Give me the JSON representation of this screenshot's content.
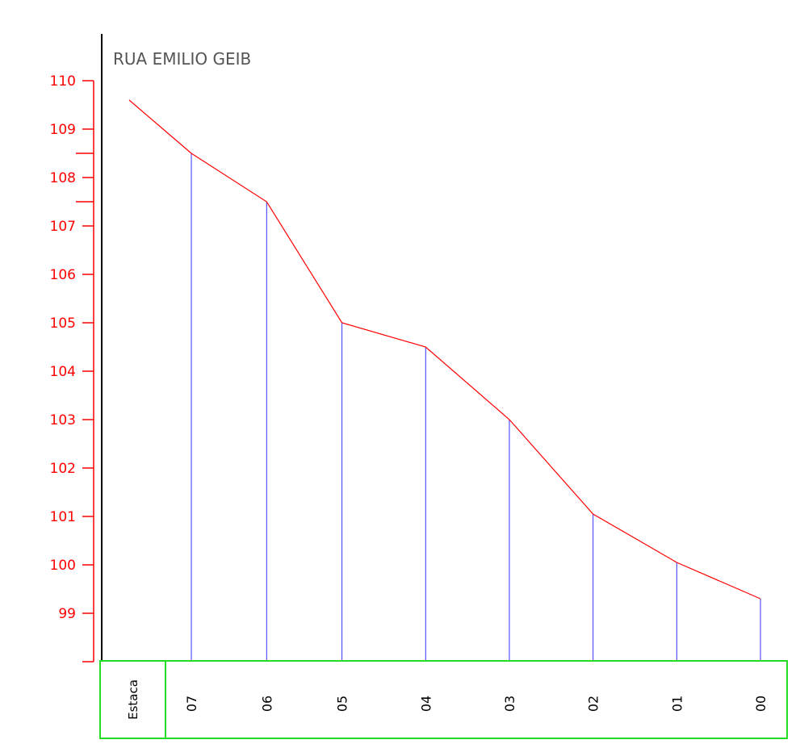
{
  "chart_data": {
    "type": "line",
    "title": "RUA EMILIO GEIB",
    "table_header": "Estaca",
    "y_ticks": [
      "99",
      "100",
      "101",
      "102",
      "103",
      "104",
      "105",
      "106",
      "107",
      "108",
      "109",
      "110"
    ],
    "ylim": [
      98,
      110
    ],
    "stations": [
      "07",
      "06",
      "05",
      "04",
      "03",
      "02",
      "01",
      "00"
    ],
    "station_x": [
      1,
      2.8,
      4.6,
      6.6,
      8.6,
      10.6,
      12.6,
      14.6
    ],
    "values": [
      108.5,
      107.5,
      105.0,
      104.5,
      103.0,
      101.05,
      100.05,
      99.3
    ],
    "start_value": 109.6,
    "grid": false,
    "colors": {
      "profile_line": "#ff0000",
      "axis": "#ff0000",
      "station_lines": "#3333ff",
      "table_border": "#22dd22",
      "frame": "#000000"
    }
  }
}
